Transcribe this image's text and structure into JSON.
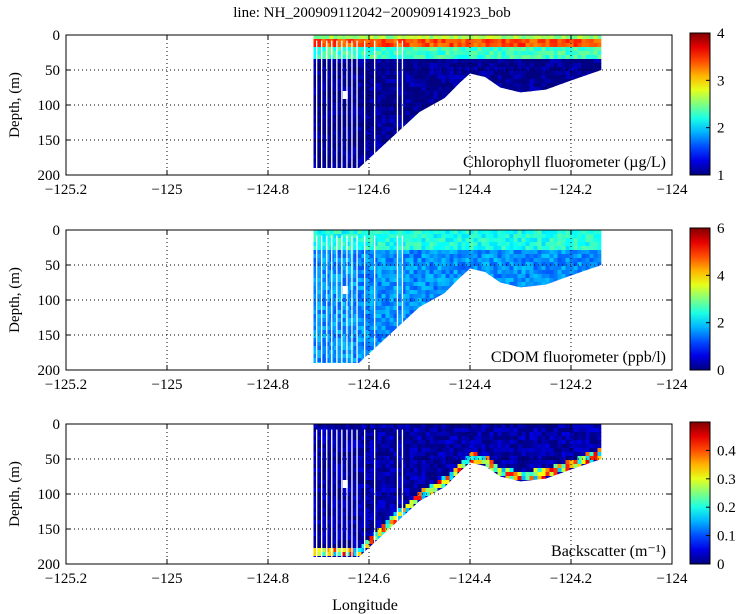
{
  "title": "line: NH_200909112042−200909141923_bob",
  "xlabel": "Longitude",
  "colormap": "jet",
  "chart_data": [
    {
      "type": "heatmap",
      "label": "Chlorophyll fluorometer (µg/L)",
      "ylabel": "Depth, (m)",
      "xlim": [
        -125.2,
        -124.0
      ],
      "ylim": [
        0,
        200
      ],
      "xticks": [
        -125.2,
        -125.0,
        -124.8,
        -124.6,
        -124.4,
        -124.2,
        -124.0
      ],
      "xtick_labels": [
        "−125.2",
        "−125",
        "−124.8",
        "−124.6",
        "−124.4",
        "−124.2",
        "−124"
      ],
      "yticks": [
        0,
        50,
        100,
        150,
        200
      ],
      "ytick_labels": [
        "0",
        "50",
        "100",
        "150",
        "200"
      ],
      "clim": [
        1,
        4
      ],
      "cticks": [
        1,
        2,
        3,
        4
      ],
      "ctick_labels": [
        "1",
        "2",
        "3",
        "4"
      ],
      "data_x_range": [
        -124.71,
        -124.14
      ],
      "bottom_profile": [
        [
          -124.71,
          190
        ],
        [
          -124.62,
          190
        ],
        [
          -124.59,
          170
        ],
        [
          -124.5,
          110
        ],
        [
          -124.45,
          90
        ],
        [
          -124.42,
          68
        ],
        [
          -124.4,
          55
        ],
        [
          -124.37,
          60
        ],
        [
          -124.34,
          75
        ],
        [
          -124.3,
          82
        ],
        [
          -124.25,
          78
        ],
        [
          -124.2,
          65
        ],
        [
          -124.14,
          50
        ]
      ],
      "layers": [
        {
          "depth": [
            0,
            5
          ],
          "value": 2.6
        },
        {
          "depth": [
            5,
            20
          ],
          "value": 3.4
        },
        {
          "depth": [
            20,
            35
          ],
          "value": 2.3
        },
        {
          "depth": [
            35,
            200
          ],
          "value": 1.05
        }
      ]
    },
    {
      "type": "heatmap",
      "label": "CDOM fluorometer (ppb/l)",
      "ylabel": "Depth, (m)",
      "xlim": [
        -125.2,
        -124.0
      ],
      "ylim": [
        0,
        200
      ],
      "xticks": [
        -125.2,
        -125.0,
        -124.8,
        -124.6,
        -124.4,
        -124.2,
        -124.0
      ],
      "xtick_labels": [
        "−125.2",
        "−125",
        "−124.8",
        "−124.6",
        "−124.4",
        "−124.2",
        "−124"
      ],
      "yticks": [
        0,
        50,
        100,
        150,
        200
      ],
      "ytick_labels": [
        "0",
        "50",
        "100",
        "150",
        "200"
      ],
      "clim": [
        0,
        6
      ],
      "cticks": [
        0,
        2,
        4,
        6
      ],
      "ctick_labels": [
        "0",
        "2",
        "4",
        "6"
      ],
      "data_x_range": [
        -124.71,
        -124.14
      ],
      "bottom_profile": [
        [
          -124.71,
          190
        ],
        [
          -124.62,
          190
        ],
        [
          -124.59,
          170
        ],
        [
          -124.5,
          110
        ],
        [
          -124.45,
          90
        ],
        [
          -124.42,
          68
        ],
        [
          -124.4,
          55
        ],
        [
          -124.37,
          60
        ],
        [
          -124.34,
          75
        ],
        [
          -124.3,
          82
        ],
        [
          -124.25,
          78
        ],
        [
          -124.2,
          65
        ],
        [
          -124.14,
          50
        ]
      ],
      "layers": [
        {
          "depth": [
            0,
            30
          ],
          "value": 2.4
        },
        {
          "depth": [
            30,
            200
          ],
          "value": 1.6
        }
      ]
    },
    {
      "type": "heatmap",
      "label": "Backscatter (m⁻¹)",
      "ylabel": "Depth, (m)",
      "xlim": [
        -125.2,
        -124.0
      ],
      "ylim": [
        0,
        200
      ],
      "xticks": [
        -125.2,
        -125.0,
        -124.8,
        -124.6,
        -124.4,
        -124.2,
        -124.0
      ],
      "xtick_labels": [
        "−125.2",
        "−125",
        "−124.8",
        "−124.6",
        "−124.4",
        "−124.2",
        "−124"
      ],
      "yticks": [
        0,
        50,
        100,
        150,
        200
      ],
      "ytick_labels": [
        "0",
        "50",
        "100",
        "150",
        "200"
      ],
      "clim": [
        0,
        0.5
      ],
      "cticks": [
        0,
        0.1,
        0.2,
        0.3,
        0.4
      ],
      "ctick_labels": [
        "0",
        "0.1",
        "0.2",
        "0.3",
        "0.4"
      ],
      "data_x_range": [
        -124.71,
        -124.14
      ],
      "bottom_profile": [
        [
          -124.71,
          190
        ],
        [
          -124.62,
          190
        ],
        [
          -124.59,
          170
        ],
        [
          -124.5,
          110
        ],
        [
          -124.45,
          90
        ],
        [
          -124.42,
          68
        ],
        [
          -124.4,
          55
        ],
        [
          -124.37,
          60
        ],
        [
          -124.34,
          75
        ],
        [
          -124.3,
          82
        ],
        [
          -124.25,
          78
        ],
        [
          -124.2,
          65
        ],
        [
          -124.14,
          50
        ]
      ],
      "layers": [
        {
          "depth": [
            0,
            200
          ],
          "value": 0.02
        }
      ],
      "near_bottom_value": 0.15
    }
  ]
}
